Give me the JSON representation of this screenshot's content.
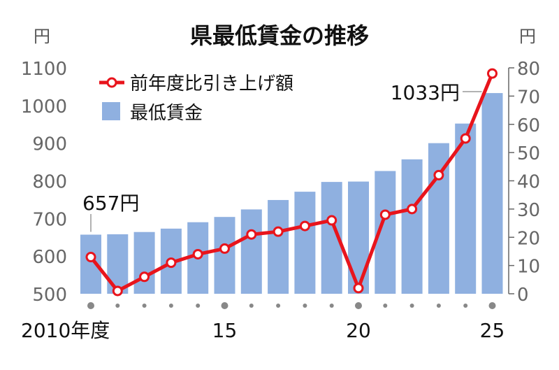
{
  "chart_data": {
    "type": "bar+line",
    "title": "県最低賃金の推移",
    "left_axis": {
      "unit_label": "円",
      "ylim": [
        500,
        1100
      ],
      "ticks": [
        500,
        600,
        700,
        800,
        900,
        1000,
        1100
      ]
    },
    "right_axis": {
      "unit_label": "円",
      "ylim": [
        0,
        80
      ],
      "ticks": [
        0,
        10,
        20,
        30,
        40,
        50,
        60,
        70,
        80
      ]
    },
    "x": [
      2010,
      2011,
      2012,
      2013,
      2014,
      2015,
      2016,
      2017,
      2018,
      2019,
      2020,
      2021,
      2022,
      2023,
      2024,
      2025
    ],
    "x_tick_labels": [
      {
        "index": 0,
        "label": "2010年度"
      },
      {
        "index": 5,
        "label": "15"
      },
      {
        "index": 10,
        "label": "20"
      },
      {
        "index": 15,
        "label": "25"
      }
    ],
    "legend": [
      "前年度比引き上げ額",
      "最低賃金"
    ],
    "legend_placement": "top-left",
    "series": [
      {
        "name": "最低賃金",
        "type": "bar",
        "axis": "left",
        "color": "#8fb0e0",
        "values": [
          657,
          658,
          664,
          673,
          690,
          704,
          724,
          749,
          771,
          797,
          798,
          826,
          857,
          900,
          952,
          1033
        ]
      },
      {
        "name": "前年度比引き上げ額",
        "type": "line",
        "axis": "right",
        "color": "#e8141c",
        "values": [
          13,
          1,
          6,
          11,
          14,
          16,
          21,
          22,
          24,
          26,
          2,
          28,
          30,
          42,
          55,
          78
        ]
      }
    ],
    "annotations": [
      {
        "index": 0,
        "text": "657円"
      },
      {
        "index": 15,
        "text": "1033円"
      }
    ]
  }
}
